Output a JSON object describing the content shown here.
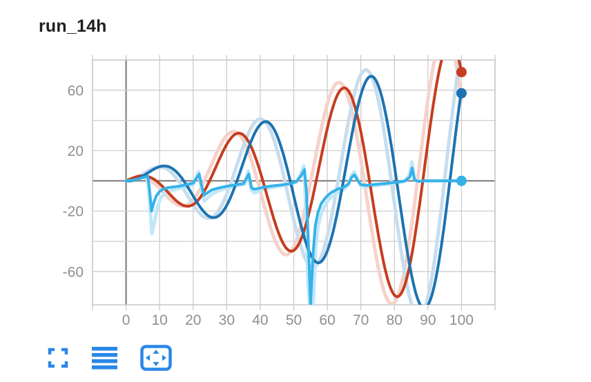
{
  "header": {
    "title": "run_14h"
  },
  "toolbar": {
    "icons": [
      {
        "name": "fullscreen",
        "color": "#2a87e8"
      },
      {
        "name": "data-list",
        "color": "#2a87e8"
      },
      {
        "name": "pan-zoom",
        "color": "#2a87e8"
      }
    ]
  },
  "colors": {
    "grid_light": "#cdcdcd",
    "grid_zero": "#8f8f8f",
    "border": "#c6c6c6",
    "tick_label": "#8f8f8f",
    "title": "#1f1f1f",
    "icon_blue": "#2a87e8",
    "background": "#ffffff"
  },
  "chart_data": {
    "type": "line",
    "title": "run_14h",
    "xlim": [
      -10,
      110
    ],
    "ylim": [
      -82,
      80
    ],
    "grid": true,
    "legend": "none",
    "x_grid_values": [
      -10,
      0,
      10,
      20,
      30,
      40,
      50,
      60,
      70,
      80,
      90,
      100,
      110
    ],
    "x_tick_labels": [
      {
        "value": 0,
        "label": "0"
      },
      {
        "value": 10,
        "label": "10"
      },
      {
        "value": 20,
        "label": "20"
      },
      {
        "value": 30,
        "label": "30"
      },
      {
        "value": 40,
        "label": "40"
      },
      {
        "value": 50,
        "label": "50"
      },
      {
        "value": 60,
        "label": "60"
      },
      {
        "value": 70,
        "label": "70"
      },
      {
        "value": 80,
        "label": "80"
      },
      {
        "value": 90,
        "label": "90"
      },
      {
        "value": 100,
        "label": "100"
      }
    ],
    "y_grid_values": [
      -60,
      -40,
      -20,
      0,
      20,
      40,
      60
    ],
    "y_tick_labels": [
      {
        "value": 60,
        "label": "60"
      },
      {
        "value": 20,
        "label": "20"
      },
      {
        "value": -20,
        "label": "-20"
      },
      {
        "value": -60,
        "label": "-60"
      }
    ],
    "series": [
      {
        "id": "red-raw",
        "role": "raw",
        "color": "#f5d2ca",
        "width": 5,
        "generator": {
          "type": "growing_sine",
          "amp_per_x": 1.03,
          "omega": 0.1977,
          "phase": 1.36,
          "x_lead": 1.6
        },
        "x_start": 0,
        "x_end": 100,
        "extrema_readout": [
          [
            17,
            -15
          ],
          [
            33,
            31
          ],
          [
            48,
            -47
          ],
          [
            64,
            65
          ],
          [
            77,
            -76
          ]
        ]
      },
      {
        "id": "blue-raw",
        "role": "raw",
        "color": "#c7ddee",
        "width": 5,
        "generator": {
          "type": "growing_sine",
          "amp_per_x": 1.03,
          "omega": 0.198,
          "phase": -0.264,
          "x_lead": 1.6
        },
        "x_start": 0,
        "x_end": 100,
        "extrema_readout": [
          [
            9,
            9
          ],
          [
            24,
            -24
          ],
          [
            40,
            41
          ],
          [
            55,
            -55
          ],
          [
            70,
            71
          ],
          [
            86,
            -82
          ]
        ]
      },
      {
        "id": "cyan-raw",
        "role": "raw",
        "color": "#c2e7f8",
        "width": 5,
        "points": [
          [
            0,
            0
          ],
          [
            2,
            0.8
          ],
          [
            4,
            2
          ],
          [
            5.5,
            3
          ],
          [
            6.3,
            2
          ],
          [
            6.9,
            -10
          ],
          [
            7.7,
            -35
          ],
          [
            8.5,
            -27
          ],
          [
            9.3,
            -18
          ],
          [
            10.2,
            -12
          ],
          [
            11.2,
            -9
          ],
          [
            12.5,
            -7
          ],
          [
            14,
            -6
          ],
          [
            16,
            -5
          ],
          [
            18,
            -4
          ],
          [
            20,
            -2.5
          ],
          [
            21.6,
            6
          ],
          [
            22.4,
            -4
          ],
          [
            23.3,
            -13.5
          ],
          [
            24.4,
            -11
          ],
          [
            25.8,
            -8.5
          ],
          [
            27.5,
            -6.5
          ],
          [
            29.5,
            -5
          ],
          [
            31.5,
            -4
          ],
          [
            33.5,
            -3
          ],
          [
            35.5,
            -2
          ],
          [
            36.4,
            6.5
          ],
          [
            37.3,
            -6
          ],
          [
            38.3,
            -8
          ],
          [
            39.6,
            -6.8
          ],
          [
            41,
            -5.5
          ],
          [
            43,
            -4.5
          ],
          [
            45,
            -3.8
          ],
          [
            47,
            -3
          ],
          [
            49,
            -2.2
          ],
          [
            50.8,
            -0.8
          ],
          [
            52.1,
            4.5
          ],
          [
            53,
            10
          ],
          [
            53.6,
            -20
          ],
          [
            54.2,
            -65
          ],
          [
            54.7,
            -82
          ],
          [
            55.8,
            -82
          ],
          [
            56.5,
            -45
          ],
          [
            57.3,
            -29
          ],
          [
            58.3,
            -21
          ],
          [
            59.6,
            -15
          ],
          [
            61,
            -11
          ],
          [
            63,
            -8
          ],
          [
            65,
            -5.5
          ],
          [
            66.2,
            -3
          ],
          [
            67.2,
            3.5
          ],
          [
            68,
            6
          ],
          [
            69,
            1.5
          ],
          [
            70,
            -3.5
          ],
          [
            71.5,
            -4.2
          ],
          [
            73,
            -3.6
          ],
          [
            75,
            -3
          ],
          [
            77,
            -2.4
          ],
          [
            79,
            -1.8
          ],
          [
            81,
            -1
          ],
          [
            83,
            -0.3
          ],
          [
            84.4,
            3.5
          ],
          [
            85.2,
            12.5
          ],
          [
            86,
            1.5
          ],
          [
            87.2,
            -0.5
          ],
          [
            89,
            0
          ],
          [
            92,
            0
          ],
          [
            95,
            0
          ],
          [
            98,
            0
          ],
          [
            100,
            0
          ]
        ]
      },
      {
        "id": "red-smoothed",
        "role": "smoothed",
        "color": "#c63d1f",
        "width": 4,
        "generator": {
          "type": "growing_sine",
          "amp_per_x": 0.95,
          "omega": 0.1977,
          "phase": 1.36,
          "x_lead": 0
        },
        "x_start": 0,
        "x_end": 100,
        "extrema_readout": [
          [
            17,
            -13
          ],
          [
            33,
            30
          ],
          [
            48,
            -46
          ],
          [
            64,
            59
          ],
          [
            79,
            -73
          ],
          [
            100,
            72
          ]
        ]
      },
      {
        "id": "blue-smoothed",
        "role": "smoothed",
        "color": "#1c73b1",
        "width": 4,
        "generator": {
          "type": "growing_sine",
          "amp_per_x": 0.95,
          "omega": 0.198,
          "phase": -0.264,
          "x_lead": 0
        },
        "x_start": 0,
        "x_end": 100,
        "extrema_readout": [
          [
            10,
            8
          ],
          [
            25,
            -22
          ],
          [
            41,
            38
          ],
          [
            56,
            -52
          ],
          [
            71,
            65
          ],
          [
            87,
            -80
          ],
          [
            100,
            58
          ]
        ]
      },
      {
        "id": "cyan-smoothed",
        "role": "smoothed",
        "color": "#35b2e8",
        "width": 4,
        "points": [
          [
            0,
            0
          ],
          [
            2,
            0.5
          ],
          [
            4,
            1.5
          ],
          [
            5.5,
            2.5
          ],
          [
            6.5,
            3
          ],
          [
            7,
            -6
          ],
          [
            7.6,
            -20
          ],
          [
            8.2,
            -15
          ],
          [
            9,
            -10
          ],
          [
            10,
            -7
          ],
          [
            11,
            -5.5
          ],
          [
            12.5,
            -4.5
          ],
          [
            14,
            -4
          ],
          [
            16,
            -3.5
          ],
          [
            18,
            -2.5
          ],
          [
            20,
            -1.5
          ],
          [
            21.8,
            4.5
          ],
          [
            22.4,
            -2
          ],
          [
            23.2,
            -9.5
          ],
          [
            24.2,
            -8
          ],
          [
            25.5,
            -6
          ],
          [
            27,
            -5
          ],
          [
            29,
            -4
          ],
          [
            31,
            -3.2
          ],
          [
            33,
            -2.5
          ],
          [
            35,
            -1.8
          ],
          [
            36.6,
            4.5
          ],
          [
            37.4,
            -4.5
          ],
          [
            38.2,
            -5.5
          ],
          [
            39.5,
            -5
          ],
          [
            41,
            -4.2
          ],
          [
            43,
            -3.5
          ],
          [
            45,
            -3
          ],
          [
            47,
            -2.5
          ],
          [
            49,
            -1.8
          ],
          [
            50.8,
            -0.5
          ],
          [
            52.2,
            3.5
          ],
          [
            53.2,
            7.5
          ],
          [
            53.8,
            -8
          ],
          [
            54.4,
            -45
          ],
          [
            55,
            -82
          ],
          [
            55.7,
            -50
          ],
          [
            56.4,
            -30
          ],
          [
            57.2,
            -21
          ],
          [
            58.2,
            -15
          ],
          [
            59.5,
            -11
          ],
          [
            61,
            -8
          ],
          [
            63,
            -5.5
          ],
          [
            65,
            -4
          ],
          [
            66.3,
            -2
          ],
          [
            67.3,
            2.5
          ],
          [
            68.1,
            4
          ],
          [
            69,
            0.5
          ],
          [
            70,
            -2.5
          ],
          [
            71.5,
            -3
          ],
          [
            73,
            -2.6
          ],
          [
            75,
            -2.2
          ],
          [
            77,
            -1.8
          ],
          [
            79,
            -1.3
          ],
          [
            81,
            -0.8
          ],
          [
            83,
            -0.2
          ],
          [
            84.6,
            2.5
          ],
          [
            85.3,
            8.5
          ],
          [
            86,
            0.5
          ],
          [
            87.2,
            -0.3
          ],
          [
            89,
            0
          ],
          [
            92,
            0
          ],
          [
            95,
            0
          ],
          [
            98,
            0
          ],
          [
            100,
            0
          ]
        ]
      }
    ],
    "end_markers": [
      {
        "series": "red-smoothed",
        "x": 100,
        "y": 72,
        "color": "#c63d1f",
        "r": 7.5
      },
      {
        "series": "blue-smoothed",
        "x": 100,
        "y": 58,
        "color": "#1c73b1",
        "r": 7.5
      },
      {
        "series": "cyan-smoothed",
        "x": 100,
        "y": 0,
        "color": "#35b2e8",
        "r": 7.5
      }
    ]
  }
}
